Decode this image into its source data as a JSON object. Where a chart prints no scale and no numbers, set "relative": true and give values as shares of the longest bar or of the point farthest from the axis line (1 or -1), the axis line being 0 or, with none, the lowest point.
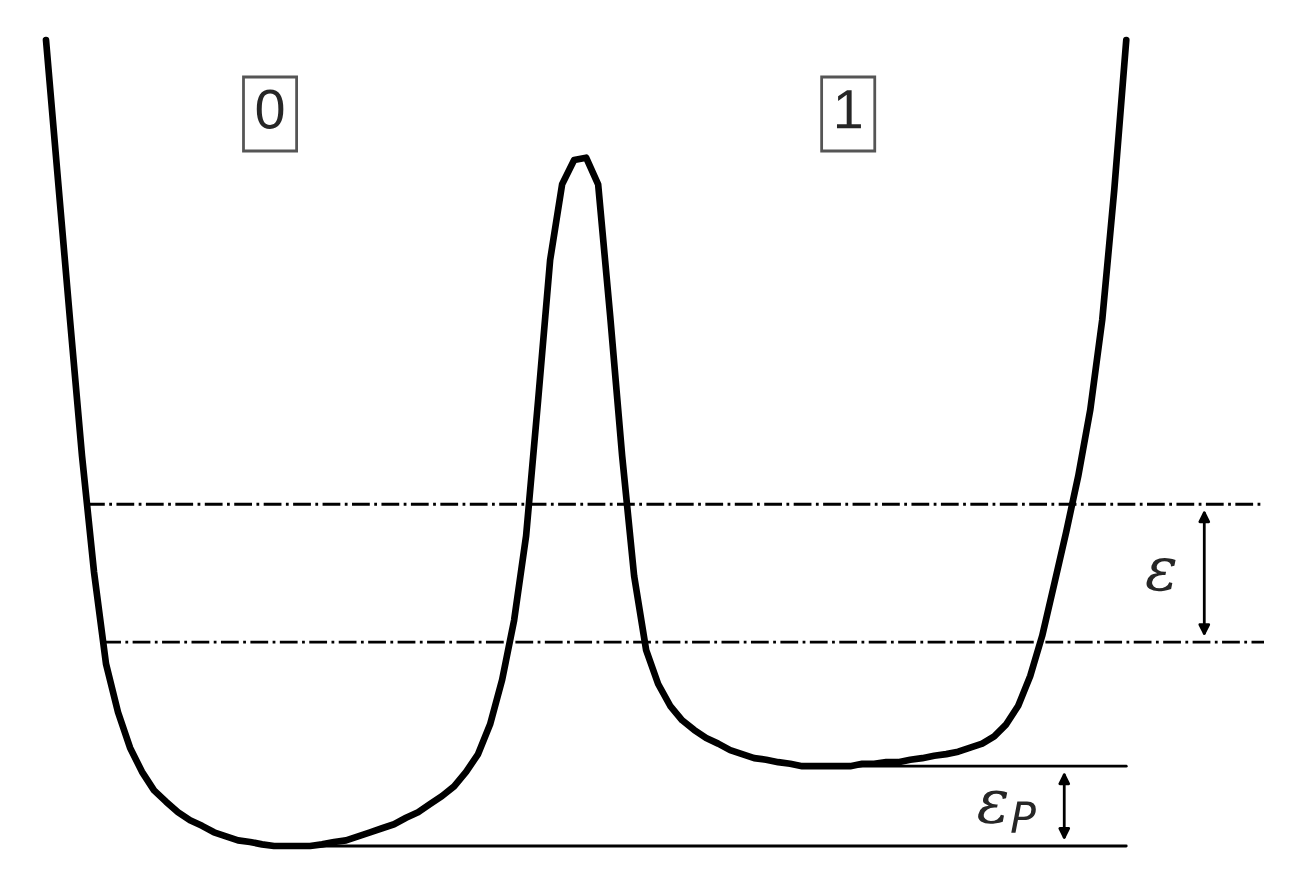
{
  "chart_data": {
    "type": "line",
    "relative": true,
    "categories": [
      null,
      null,
      null,
      null,
      null,
      null,
      null,
      null,
      null,
      null,
      null,
      null,
      null,
      null,
      null,
      null,
      null,
      null,
      null,
      null,
      null,
      null,
      null,
      null,
      null,
      null,
      null,
      null,
      null,
      null,
      null,
      null,
      null,
      null,
      null,
      null,
      null,
      null,
      null,
      null,
      null,
      null,
      null,
      null,
      null,
      null,
      null,
      null,
      null,
      null,
      null,
      null,
      null,
      null,
      null,
      null,
      null,
      null,
      null,
      null,
      null,
      null,
      null,
      null,
      null,
      null,
      null,
      null,
      null,
      null,
      null,
      null,
      null,
      null,
      null,
      null,
      null,
      null,
      null,
      null,
      null,
      null,
      null,
      null,
      null,
      null,
      null,
      null,
      null,
      null,
      null
    ],
    "series": [
      {
        "color": "#000000",
        "values": [
          1.0,
          0.826,
          0.653,
          0.484,
          0.34,
          0.226,
          0.166,
          0.122,
          0.092,
          0.069,
          0.055,
          0.042,
          0.032,
          0.025,
          0.017,
          0.012,
          0.007,
          0.005,
          0.002,
          0,
          0,
          0,
          0,
          0.002,
          0.005,
          0.007,
          0.012,
          0.017,
          0.022,
          0.027,
          0.035,
          0.042,
          0.052,
          0.062,
          0.074,
          0.092,
          0.114,
          0.151,
          0.206,
          0.28,
          0.385,
          0.553,
          0.727,
          0.821,
          0.851,
          0.854,
          0.821,
          0.658,
          0.484,
          0.335,
          0.243,
          0.201,
          0.174,
          0.156,
          0.144,
          0.134,
          0.127,
          0.119,
          0.114,
          0.109,
          0.107,
          0.104,
          0.102,
          0.099,
          0.099,
          0.099,
          0.099,
          0.099,
          0.102,
          0.102,
          0.104,
          0.104,
          0.107,
          0.109,
          0.112,
          0.114,
          0.117,
          0.122,
          0.127,
          0.136,
          0.151,
          0.174,
          0.211,
          0.261,
          0.325,
          0.39,
          0.459,
          0.541,
          0.653,
          0.814,
          1.0
        ]
      }
    ],
    "ref_lines": [
      {
        "axis": "y",
        "value": 0.424,
        "line_style": "dashdot",
        "color": "#000000"
      },
      {
        "axis": "y",
        "value": 0.253,
        "line_style": "dashdot",
        "color": "#000000"
      },
      {
        "axis": "y",
        "value": 0.099,
        "line_style": "solid",
        "color": "#000000"
      },
      {
        "axis": "y",
        "value": 0,
        "line_style": "solid",
        "color": "#000000"
      }
    ],
    "annotations": [
      "0",
      "1",
      "ε",
      "ε$_{P}$"
    ],
    "legend": false,
    "marker": "none",
    "line_style": "solid"
  }
}
